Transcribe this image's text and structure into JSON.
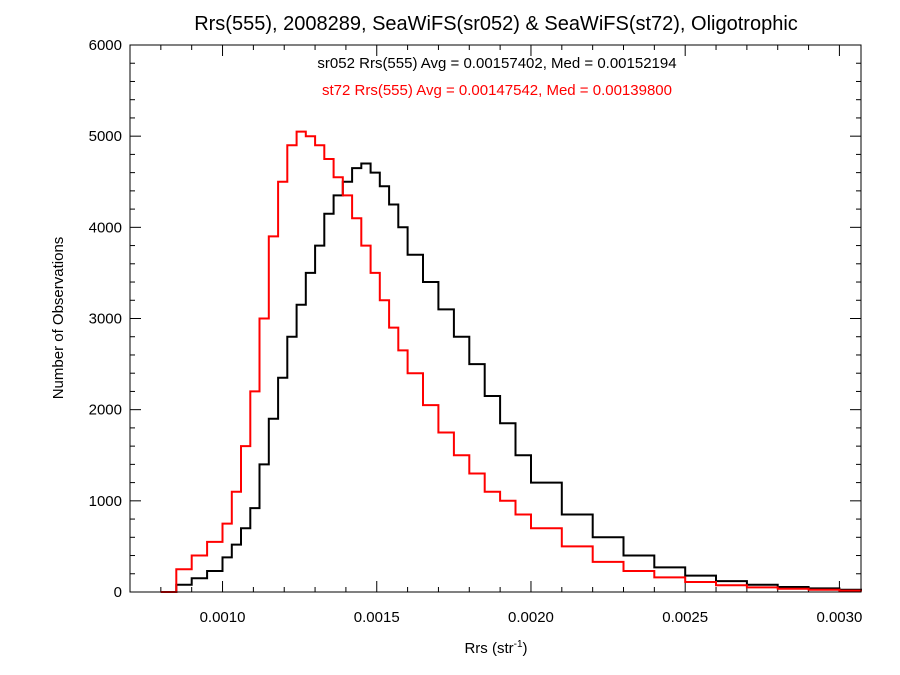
{
  "chart_data": {
    "type": "line",
    "title": "Rrs(555), 2008289, SeaWiFS(sr052) & SeaWiFS(st72), Oligotrophic",
    "xlabel_main": "Rrs (str",
    "xlabel_sup": "-1",
    "xlabel_close": ")",
    "ylabel": "Number of Observations",
    "xlim": [
      0.0007,
      0.00307
    ],
    "ylim": [
      0,
      6000
    ],
    "x_ticks": [
      0.001,
      0.0015,
      0.002,
      0.0025,
      0.003
    ],
    "x_tick_labels": [
      "0.0010",
      "0.0015",
      "0.0020",
      "0.0025",
      "0.0030"
    ],
    "y_ticks": [
      0,
      1000,
      2000,
      3000,
      4000,
      5000,
      6000
    ],
    "y_tick_labels": [
      "0",
      "1000",
      "2000",
      "3000",
      "4000",
      "5000",
      "6000"
    ],
    "annotations": [
      {
        "text": "sr052 Rrs(555) Avg = 0.00157402, Med = 0.00152194",
        "color": "#000000"
      },
      {
        "text": "st72 Rrs(555) Avg = 0.00147542, Med = 0.00139800",
        "color": "#ff0000"
      }
    ],
    "series": [
      {
        "name": "sr052",
        "color": "#000000",
        "x": [
          0.0008,
          0.00085,
          0.0009,
          0.00095,
          0.001,
          0.00103,
          0.00106,
          0.00109,
          0.00112,
          0.00115,
          0.00118,
          0.00121,
          0.00124,
          0.00127,
          0.0013,
          0.00133,
          0.00136,
          0.00139,
          0.00142,
          0.00145,
          0.00148,
          0.00151,
          0.00154,
          0.00157,
          0.0016,
          0.00165,
          0.0017,
          0.00175,
          0.0018,
          0.00185,
          0.0019,
          0.00195,
          0.002,
          0.0021,
          0.0022,
          0.0023,
          0.0024,
          0.0025,
          0.0026,
          0.0027,
          0.0028,
          0.0029,
          0.003,
          0.00307
        ],
        "y": [
          0,
          80,
          150,
          230,
          380,
          520,
          700,
          920,
          1400,
          1900,
          2350,
          2800,
          3150,
          3500,
          3800,
          4150,
          4350,
          4500,
          4650,
          4700,
          4600,
          4450,
          4250,
          4000,
          3700,
          3400,
          3100,
          2800,
          2500,
          2150,
          1850,
          1500,
          1200,
          850,
          600,
          400,
          270,
          180,
          120,
          80,
          55,
          40,
          25,
          10
        ]
      },
      {
        "name": "st72",
        "color": "#ff0000",
        "x": [
          0.0008,
          0.00085,
          0.0009,
          0.00095,
          0.001,
          0.00103,
          0.00106,
          0.00109,
          0.00112,
          0.00115,
          0.00118,
          0.00121,
          0.00124,
          0.00127,
          0.0013,
          0.00133,
          0.00136,
          0.00139,
          0.00142,
          0.00145,
          0.00148,
          0.00151,
          0.00154,
          0.00157,
          0.0016,
          0.00165,
          0.0017,
          0.00175,
          0.0018,
          0.00185,
          0.0019,
          0.00195,
          0.002,
          0.0021,
          0.0022,
          0.0023,
          0.0024,
          0.0025,
          0.0026,
          0.0027,
          0.0028,
          0.0029,
          0.003,
          0.00307
        ],
        "y": [
          0,
          250,
          400,
          550,
          750,
          1100,
          1600,
          2200,
          3000,
          3900,
          4500,
          4900,
          5050,
          5000,
          4900,
          4750,
          4550,
          4350,
          4100,
          3800,
          3500,
          3200,
          2900,
          2650,
          2400,
          2050,
          1750,
          1500,
          1300,
          1100,
          1000,
          850,
          700,
          500,
          330,
          230,
          160,
          110,
          75,
          50,
          35,
          25,
          15,
          5
        ]
      }
    ]
  }
}
